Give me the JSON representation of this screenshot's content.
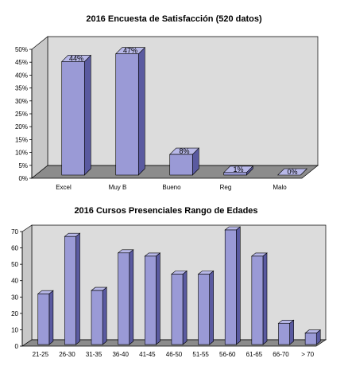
{
  "colors": {
    "bar_front": "#9a9ad6",
    "bar_top": "#b8b8e8",
    "bar_side": "#5a5aa0",
    "wall": "#dcdcdc",
    "floor": "#8c8c8c",
    "outline": "#000000"
  },
  "chart_data": [
    {
      "type": "bar",
      "title": "2016 Encuesta de Satisfacción (520 datos)",
      "categories": [
        "Excel",
        "Muy B",
        "Bueno",
        "Reg",
        "Malo"
      ],
      "values": [
        44,
        47,
        8,
        1,
        0
      ],
      "data_labels": [
        "44%",
        "47%",
        "8%",
        "1%",
        "0%"
      ],
      "ylim": [
        0,
        50
      ],
      "yticks": [
        0,
        5,
        10,
        15,
        20,
        25,
        30,
        35,
        40,
        45,
        50
      ],
      "ytick_labels": [
        "0%",
        "5%",
        "10%",
        "15%",
        "20%",
        "25%",
        "30%",
        "35%",
        "40%",
        "45%",
        "50%"
      ],
      "grid": false,
      "legend": "none"
    },
    {
      "type": "bar",
      "title": "2016 Cursos Presenciales Rango de Edades",
      "categories": [
        "21-25",
        "26-30",
        "31-35",
        "36-40",
        "41-45",
        "46-50",
        "51-55",
        "56-60",
        "61-65",
        "66-70",
        "> 70"
      ],
      "values": [
        31,
        66,
        33,
        56,
        54,
        43,
        43,
        70,
        54,
        13,
        7
      ],
      "ylim": [
        0,
        70
      ],
      "yticks": [
        0,
        10,
        20,
        30,
        40,
        50,
        60,
        70
      ],
      "ytick_labels": [
        "0",
        "10",
        "20",
        "30",
        "40",
        "50",
        "60",
        "70"
      ],
      "grid": false,
      "legend": "none"
    }
  ]
}
